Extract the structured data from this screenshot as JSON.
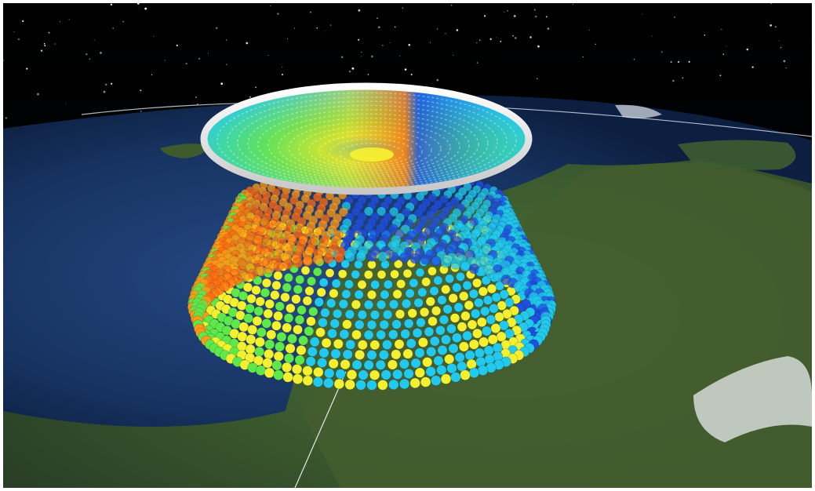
{
  "scene": {
    "view": "3d-globe",
    "background": "starfield",
    "visualization": "radar-volume-scan",
    "top_layer": "color-coded-scan-disc-with-white-ring",
    "body": "stacked-colored-sphere-rings",
    "palette": [
      "#1f4fe0",
      "#22c9ec",
      "#f3f032",
      "#5ee84b",
      "#ff6b12",
      "#ff9a18"
    ]
  }
}
